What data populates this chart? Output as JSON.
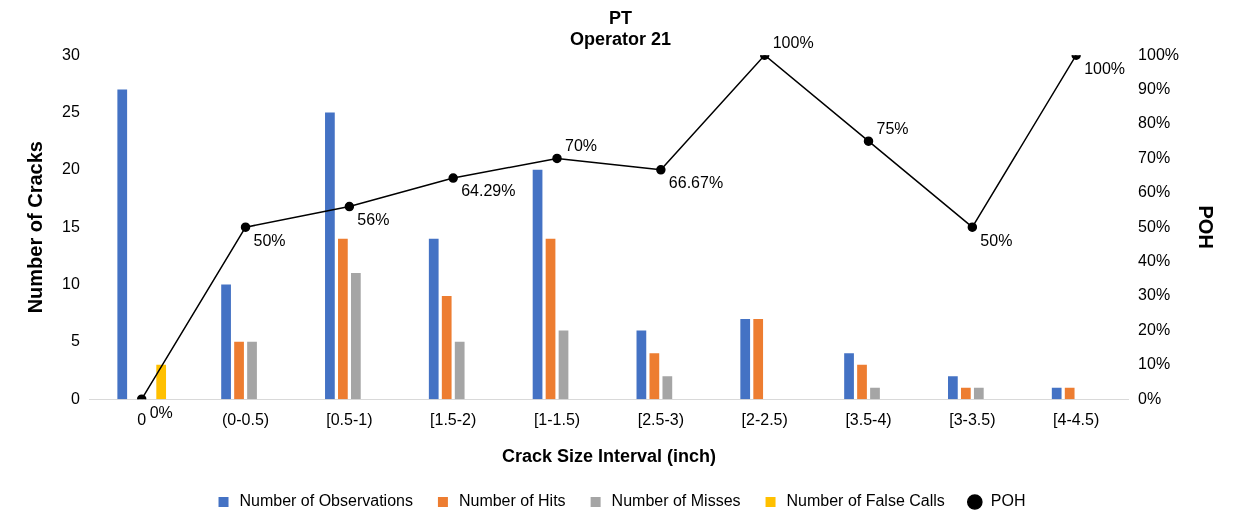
{
  "chart_data": {
    "type": "bar",
    "title": "PT",
    "subtitle": "Operator 21",
    "xlabel": "Crack Size Interval (inch)",
    "ylabel": "Number of Cracks",
    "y2label": "POH",
    "categories": [
      "0",
      "(0-0.5)",
      "[0.5-1)",
      "[1.5-2)",
      "[1-1.5)",
      "[2.5-3)",
      "[2-2.5)",
      "[3.5-4)",
      "[3-3.5)",
      "[4-4.5)"
    ],
    "series": [
      {
        "name": "Number of Observations",
        "color": "#4472c4",
        "values": [
          27,
          10,
          25,
          14,
          20,
          6,
          7,
          4,
          2,
          1
        ]
      },
      {
        "name": "Number of Hits",
        "color": "#ed7d31",
        "values": [
          null,
          5,
          14,
          9,
          14,
          4,
          7,
          3,
          1,
          1
        ]
      },
      {
        "name": "Number of Misses",
        "color": "#a5a5a5",
        "values": [
          null,
          5,
          11,
          5,
          6,
          2,
          null,
          1,
          1,
          null
        ]
      },
      {
        "name": "Number of False Calls",
        "color": "#ffc000",
        "values": [
          3,
          null,
          null,
          null,
          null,
          null,
          null,
          null,
          null,
          null
        ]
      },
      {
        "name": "POH",
        "type": "line",
        "axis": "y2",
        "color": "#000000",
        "marker": "circle",
        "values": [
          0,
          50,
          56,
          64.29,
          70,
          66.67,
          100,
          75,
          50,
          100
        ],
        "value_labels": [
          "0%",
          "50%",
          "56%",
          "64.29%",
          "70%",
          "66.67%",
          "100%",
          "75%",
          "50%",
          "100%"
        ]
      }
    ],
    "ylim": [
      0,
      30
    ],
    "yticks": [
      0,
      5,
      10,
      15,
      20,
      25,
      30
    ],
    "y2lim": [
      0,
      100
    ],
    "y2ticks": [
      {
        "value": 0,
        "label": "0%"
      },
      {
        "value": 10,
        "label": "10%"
      },
      {
        "value": 20,
        "label": "20%"
      },
      {
        "value": 30,
        "label": "30%"
      },
      {
        "value": 40,
        "label": "40%"
      },
      {
        "value": 50,
        "label": "50%"
      },
      {
        "value": 60,
        "label": "60%"
      },
      {
        "value": 70,
        "label": "70%"
      },
      {
        "value": 80,
        "label": "80%"
      },
      {
        "value": 90,
        "label": "90%"
      },
      {
        "value": 100,
        "label": "100%"
      }
    ],
    "legend": "bottom",
    "grid": false
  }
}
